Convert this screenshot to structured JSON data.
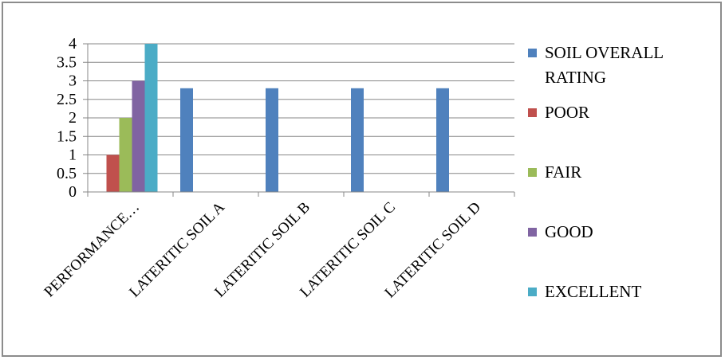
{
  "chart_data": {
    "type": "bar",
    "categories": [
      "PERFORMANCE…",
      "LATERITIC SOIL A",
      "LATERITIC SOIL B",
      "LATERITIC SOIL C",
      "LATERITIC SOIL D"
    ],
    "series": [
      {
        "name": "SOIL OVERALL RATING",
        "color": "#4f81bd",
        "values": [
          null,
          2.8,
          2.8,
          2.8,
          2.8
        ]
      },
      {
        "name": "POOR",
        "color": "#c0504d",
        "values": [
          1,
          null,
          null,
          null,
          null
        ]
      },
      {
        "name": "FAIR",
        "color": "#9bbb59",
        "values": [
          2,
          null,
          null,
          null,
          null
        ]
      },
      {
        "name": "GOOD",
        "color": "#8064a2",
        "values": [
          3,
          null,
          null,
          null,
          null
        ]
      },
      {
        "name": "EXCELLENT",
        "color": "#4bacc6",
        "values": [
          4,
          null,
          null,
          null,
          null
        ]
      }
    ],
    "y_ticks": [
      "0",
      "0.5",
      "1",
      "1.5",
      "2",
      "2.5",
      "3",
      "3.5",
      "4"
    ],
    "ylim": [
      0,
      4
    ],
    "grid": true,
    "legend": "right"
  }
}
